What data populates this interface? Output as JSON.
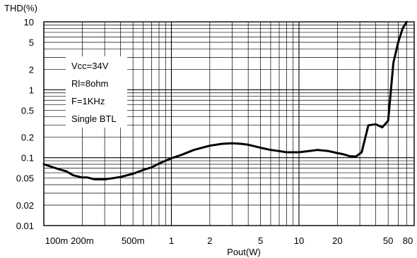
{
  "chart_data": {
    "type": "line",
    "title": "",
    "ylabel": "THD(%)",
    "xlabel": "Pout(W)",
    "xscale": "log",
    "yscale": "log",
    "xlim": [
      0.1,
      80
    ],
    "ylim": [
      0.01,
      10
    ],
    "grid": true,
    "x_ticks": [
      {
        "value": 0.1,
        "label": "100m"
      },
      {
        "value": 0.2,
        "label": "200m"
      },
      {
        "value": 0.5,
        "label": "500m"
      },
      {
        "value": 1,
        "label": "1"
      },
      {
        "value": 2,
        "label": "2"
      },
      {
        "value": 5,
        "label": "5"
      },
      {
        "value": 10,
        "label": "10"
      },
      {
        "value": 20,
        "label": "20"
      },
      {
        "value": 50,
        "label": "50"
      },
      {
        "value": 80,
        "label": "80"
      }
    ],
    "y_ticks": [
      {
        "value": 10,
        "label": "10"
      },
      {
        "value": 5,
        "label": "5"
      },
      {
        "value": 2,
        "label": "2"
      },
      {
        "value": 1,
        "label": "1"
      },
      {
        "value": 0.5,
        "label": "0.5"
      },
      {
        "value": 0.2,
        "label": "0.2"
      },
      {
        "value": 0.1,
        "label": "0.1"
      },
      {
        "value": 0.05,
        "label": "0.05"
      },
      {
        "value": 0.02,
        "label": "0.02"
      },
      {
        "value": 0.01,
        "label": "0.01"
      }
    ],
    "annotations": [
      "Vcc=34V",
      "Rl=8ohm",
      "F=1KHz",
      "Single BTL"
    ],
    "series": [
      {
        "x": [
          0.1,
          0.13,
          0.15,
          0.17,
          0.2,
          0.22,
          0.25,
          0.3,
          0.35,
          0.4,
          0.5,
          0.6,
          0.7,
          0.8,
          1.0,
          1.2,
          1.5,
          2.0,
          2.5,
          3.0,
          3.5,
          4.0,
          5.0,
          6.0,
          7.0,
          8.0,
          10.0,
          12.0,
          14.0,
          17.0,
          20.0,
          22.0,
          25.0,
          28.0,
          31.0,
          35.0,
          40.0,
          45.0,
          50.0,
          55.0,
          60.0,
          65.0,
          70.0
        ],
        "y": [
          0.08,
          0.068,
          0.063,
          0.055,
          0.051,
          0.051,
          0.048,
          0.048,
          0.05,
          0.052,
          0.058,
          0.066,
          0.072,
          0.082,
          0.098,
          0.11,
          0.13,
          0.15,
          0.16,
          0.163,
          0.16,
          0.155,
          0.14,
          0.13,
          0.125,
          0.12,
          0.12,
          0.125,
          0.13,
          0.125,
          0.117,
          0.113,
          0.105,
          0.104,
          0.12,
          0.3,
          0.31,
          0.28,
          0.35,
          2.5,
          5.0,
          8.0,
          10.0
        ],
        "color": "#000000"
      }
    ]
  }
}
